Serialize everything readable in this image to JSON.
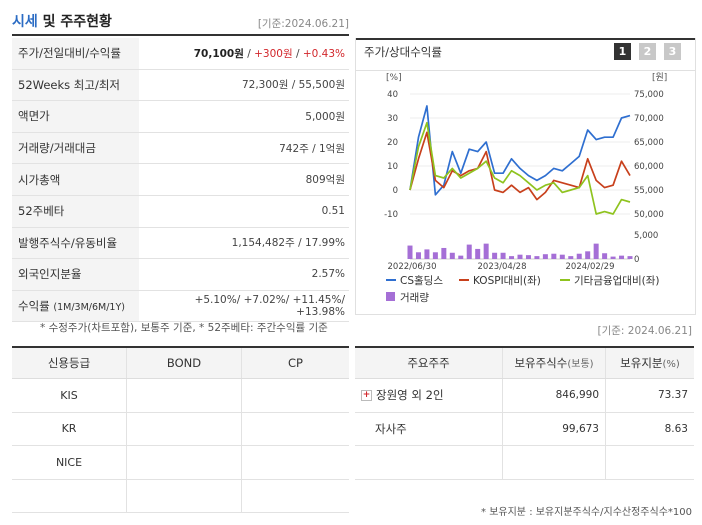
{
  "header": {
    "title_blue": "시세",
    "title_rest": " 및 주주현황",
    "date": "[기준:2024.06.21]"
  },
  "quote_rows": [
    {
      "label": "주가/전일대비/수익률",
      "price": "70,100원",
      "sep1": " / ",
      "change": "+300원",
      "sep2": " / ",
      "rate": "+0.43%"
    },
    {
      "label": "52Weeks 최고/최저",
      "value": "72,300원 / 55,500원"
    },
    {
      "label": "액면가",
      "value": "5,000원"
    },
    {
      "label": "거래량/거래대금",
      "value": "742주 / 1억원"
    },
    {
      "label": "시가총액",
      "value": "809억원"
    },
    {
      "label": "52주베타",
      "value": "0.51"
    },
    {
      "label": "발행주식수/유동비율",
      "value": "1,154,482주 / 17.99%"
    },
    {
      "label": "외국인지분율",
      "value": "2.57%"
    },
    {
      "label": "수익률",
      "label_sub": "(1M/3M/6M/1Y)",
      "value": "+5.10%/ +7.02%/ +11.45%/ +13.98%"
    }
  ],
  "note_top": "* 수정주가(차트포함), 보통주 기준, * 52주베타: 주간수익률 기준",
  "chart_panel": {
    "title": "주가/상대수익률",
    "tabs": [
      "1",
      "2",
      "3"
    ],
    "active_tab": "1",
    "date": "[기준: 2024.06.21]"
  },
  "chart_data": {
    "type": "line",
    "left_axis": {
      "unit": "[%]",
      "ticks": [
        "40",
        "30",
        "20",
        "10",
        "0",
        "-10"
      ],
      "range": [
        -10,
        40
      ]
    },
    "right_axis": {
      "unit": "[원]",
      "ticks": [
        "75,000",
        "70,000",
        "65,000",
        "60,000",
        "55,000",
        "50,000"
      ],
      "range": [
        50000,
        75000
      ]
    },
    "volume_axis": {
      "ticks": [
        "5,000",
        "0"
      ],
      "range": [
        0,
        5000
      ]
    },
    "x_tick_labels": [
      "2022/06/30",
      "2023/04/28",
      "2024/02/29"
    ],
    "series": [
      {
        "name": "CS홀딩스",
        "color": "#2f6fd0",
        "values": [
          0,
          22,
          35,
          -2,
          2,
          16,
          7,
          17,
          16,
          20,
          7,
          7,
          13,
          9,
          6,
          4,
          6,
          9,
          8,
          11,
          14,
          25,
          21,
          22,
          22,
          30,
          31
        ]
      },
      {
        "name": "KOSPI대비(좌)",
        "color": "#c8401c",
        "values": [
          0,
          13,
          24,
          4,
          1,
          8,
          6,
          8,
          9,
          16,
          0,
          -1,
          2,
          -1,
          1,
          -4,
          -1,
          4,
          3,
          2,
          1,
          13,
          4,
          1,
          2,
          12,
          6
        ]
      },
      {
        "name": "기타금융업대비(좌)",
        "color": "#8fc31f",
        "values": [
          0,
          18,
          28,
          6,
          5,
          9,
          5,
          7,
          9,
          12,
          5,
          3,
          8,
          6,
          3,
          0,
          2,
          3,
          -1,
          0,
          1,
          6,
          -10,
          -9,
          -10,
          -4,
          -5
        ]
      },
      {
        "name": "거래량",
        "color": "#a56fd6",
        "values": [
          2800,
          1400,
          2000,
          1400,
          2300,
          1300,
          700,
          3000,
          2100,
          3200,
          1300,
          1300,
          600,
          900,
          800,
          600,
          1000,
          1100,
          900,
          600,
          1100,
          1600,
          3200,
          1200,
          500,
          700,
          600
        ]
      }
    ]
  },
  "credit_table": {
    "headers": [
      "신용등급",
      "BOND",
      "CP"
    ],
    "rows": [
      [
        "KIS",
        "",
        ""
      ],
      [
        "KR",
        "",
        ""
      ],
      [
        "NICE",
        "",
        ""
      ],
      [
        "",
        "",
        ""
      ]
    ]
  },
  "shareholder_table": {
    "headers": {
      "h1": "주요주주",
      "h2": "보유주식수",
      "h2_sub": "(보통)",
      "h3": "보유지분",
      "h3_sub": "(%)"
    },
    "rows": [
      {
        "name": "장원영 외 2인",
        "expand": "+",
        "shares": "846,990",
        "pct": "73.37"
      },
      {
        "name": "자사주",
        "shares": "99,673",
        "pct": "8.63"
      },
      {
        "name": "",
        "shares": "",
        "pct": ""
      }
    ]
  },
  "note_bottom": "* 보유지분 : 보유지분주식수/지수산정주식수*100"
}
